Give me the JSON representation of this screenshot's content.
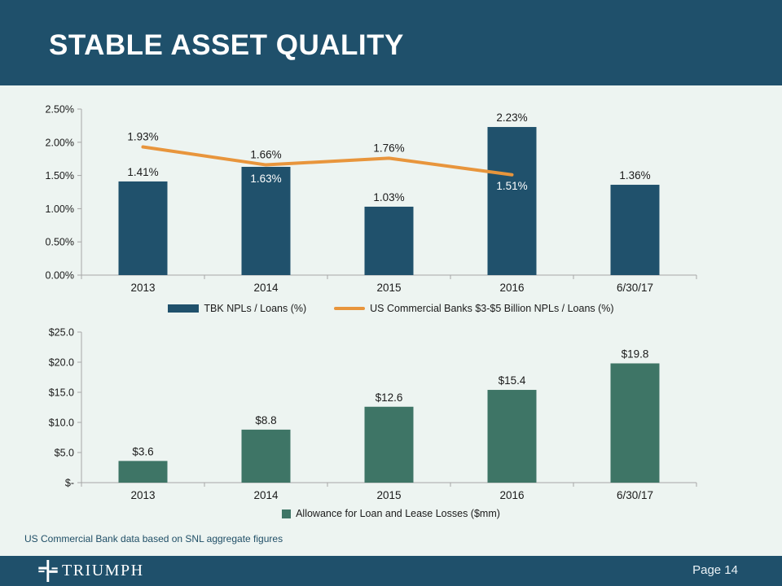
{
  "slide": {
    "title": "STABLE ASSET QUALITY",
    "footnote": "US Commercial Bank data based on SNL aggregate figures",
    "footer": {
      "brand": "TRIUMPH",
      "page_label": "Page 14"
    },
    "colors": {
      "header_bg": "#1F506B",
      "content_bg": "#EDF4F1",
      "bar_navy": "#20516C",
      "line_orange": "#E8953C",
      "bar_green": "#3E7566",
      "axis_gray": "#A6A6A6",
      "label_dark": "#1A1A1A",
      "label_light": "#FFFFFF",
      "footnote_text": "#1F4E66"
    }
  },
  "chart_data": [
    {
      "type": "bar",
      "title": "TBK NPLs vs US Commercial Banks NPLs",
      "categories": [
        "2013",
        "2014",
        "2015",
        "2016",
        "6/30/17"
      ],
      "y_ticks": [
        "2.50%",
        "2.00%",
        "1.50%",
        "1.00%",
        "0.50%",
        "0.00%"
      ],
      "ylim": [
        0,
        2.5
      ],
      "grid": false,
      "legend_position": "bottom",
      "series": [
        {
          "name": "TBK NPLs / Loans (%)",
          "type": "bar",
          "swatch": "rect",
          "color": "#20516C",
          "values": [
            1.41,
            1.63,
            1.03,
            2.23,
            1.36
          ],
          "labels": [
            "1.41%",
            "1.63%",
            "1.03%",
            "2.23%",
            "1.36%"
          ],
          "label_placement": [
            "above",
            "inside",
            "above",
            "above",
            "above"
          ]
        },
        {
          "name": "US Commercial Banks $3-$5 Billion NPLs / Loans (%)",
          "type": "line",
          "swatch": "line",
          "color": "#E8953C",
          "values": [
            1.93,
            1.66,
            1.76,
            1.51
          ],
          "labels": [
            "1.93%",
            "1.66%",
            "1.76%",
            "1.51%"
          ],
          "label_placement": [
            "above",
            "above",
            "above",
            "inside"
          ]
        }
      ]
    },
    {
      "type": "bar",
      "title": "Allowance for Loan and Lease Losses",
      "categories": [
        "2013",
        "2014",
        "2015",
        "2016",
        "6/30/17"
      ],
      "y_ticks": [
        "$25.0",
        "$20.0",
        "$15.0",
        "$10.0",
        "$5.0",
        "$-"
      ],
      "ylim": [
        0,
        25
      ],
      "grid": false,
      "legend_position": "bottom",
      "series": [
        {
          "name": "Allowance for Loan and Lease Losses ($mm)",
          "type": "bar",
          "swatch": "square",
          "color": "#3E7566",
          "values": [
            3.6,
            8.8,
            12.6,
            15.4,
            19.8
          ],
          "labels": [
            "$3.6",
            "$8.8",
            "$12.6",
            "$15.4",
            "$19.8"
          ],
          "label_placement": [
            "above",
            "above",
            "above",
            "above",
            "above"
          ]
        }
      ]
    }
  ]
}
